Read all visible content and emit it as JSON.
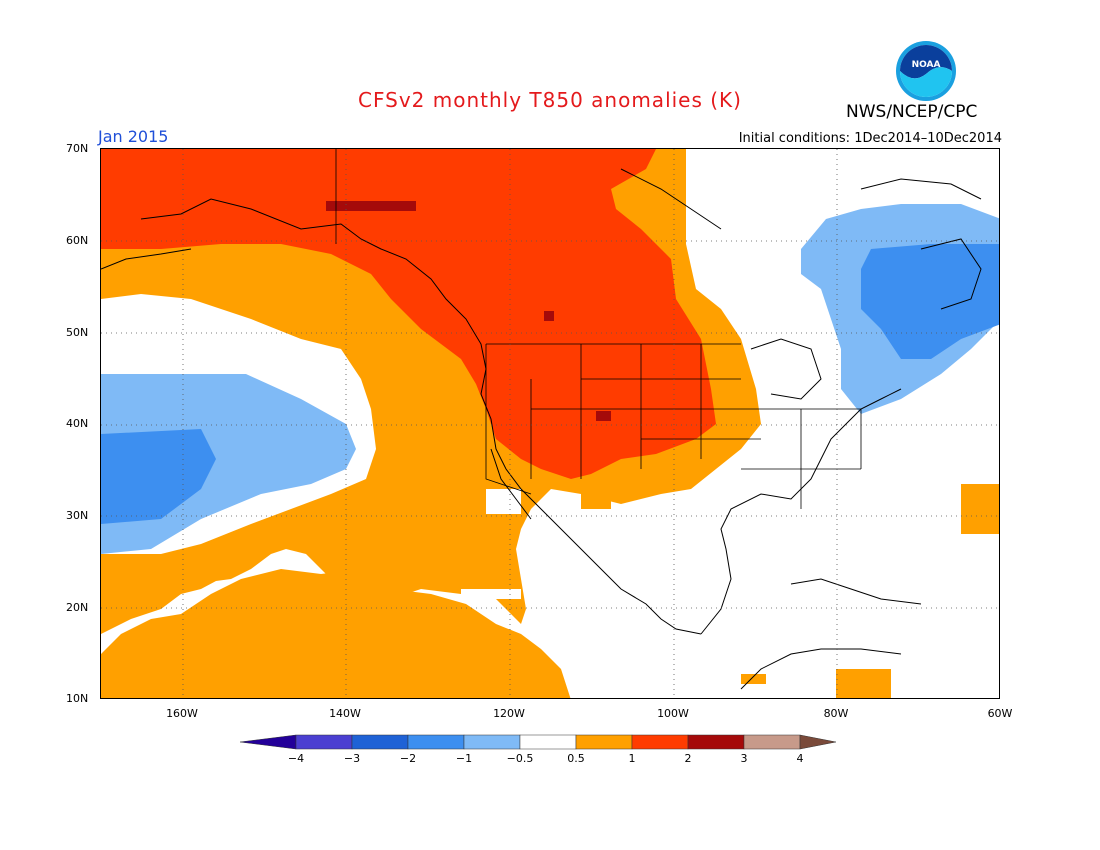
{
  "header": {
    "title": "CFSv2 monthly T850 anomalies (K)",
    "org": "NWS/NCEP/CPC",
    "month": "Jan 2015",
    "initial_conditions": "Initial conditions: 1Dec2014–10Dec2014",
    "logo_text": "NOAA"
  },
  "axes": {
    "lat_labels": [
      "70N",
      "60N",
      "50N",
      "40N",
      "30N",
      "20N",
      "10N"
    ],
    "lon_labels": [
      "160W",
      "140W",
      "120W",
      "100W",
      "80W",
      "60W"
    ]
  },
  "colorbar": {
    "labels": [
      "−4",
      "−3",
      "−2",
      "−1",
      "−0.5",
      "0.5",
      "1",
      "2",
      "3",
      "4"
    ],
    "colors": [
      "#230099",
      "#4b3fd1",
      "#1f62d6",
      "#3d8ff0",
      "#7fbaf6",
      "#ffffff",
      "#ffa000",
      "#ff3c00",
      "#a50a0a",
      "#c79a8a",
      "#7a4a3a"
    ]
  },
  "legend_colors": {
    "warm1": "#ffa000",
    "warm2": "#ff3c00",
    "warm3": "#a50a0a",
    "cool1": "#7fbaf6",
    "cool2": "#3d8ff0"
  }
}
